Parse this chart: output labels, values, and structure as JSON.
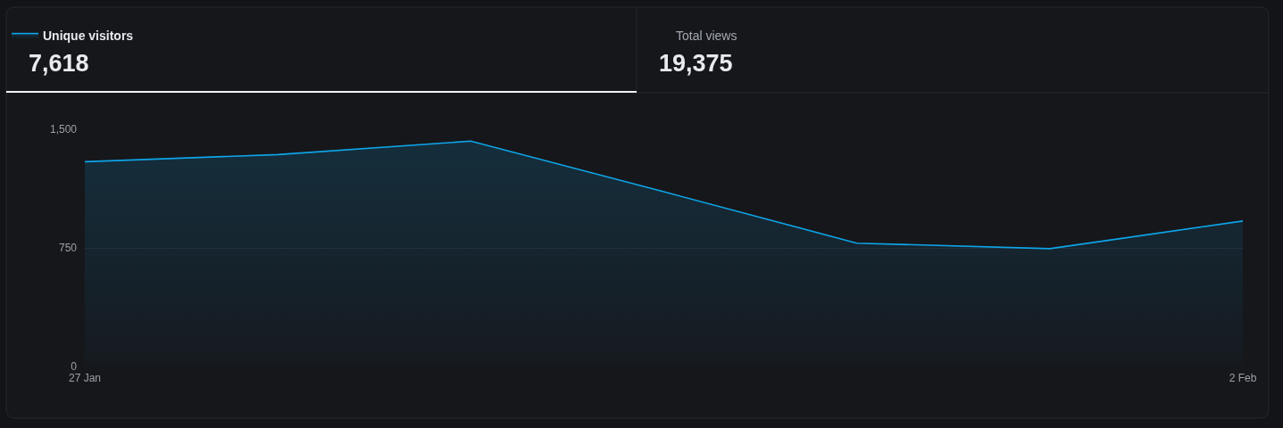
{
  "chart_data": {
    "type": "area",
    "x": [
      "--01-27",
      "--01-28",
      "--01-29",
      "--01-30",
      "--01-31",
      "--02-01",
      "--02-02"
    ],
    "series": [
      {
        "name": "Unique visitors",
        "color": "#0ea5e9",
        "values": [
          1295,
          1340,
          1425,
          1105,
          780,
          745,
          920
        ]
      }
    ],
    "xlim": [
      "--01-27",
      "--02-02"
    ],
    "xticks": [
      {
        "value": "--01-27",
        "label": "27 Jan"
      },
      {
        "value": "--02-02",
        "label": "2 Feb"
      }
    ],
    "ylim": [
      0,
      1500
    ],
    "yticks": [
      0,
      750,
      {
        "value": 1500,
        "label": "1,500"
      }
    ],
    "grid": "y",
    "legend": "top left",
    "annotations": [
      "7,618",
      "Total views",
      "19,375"
    ]
  }
}
